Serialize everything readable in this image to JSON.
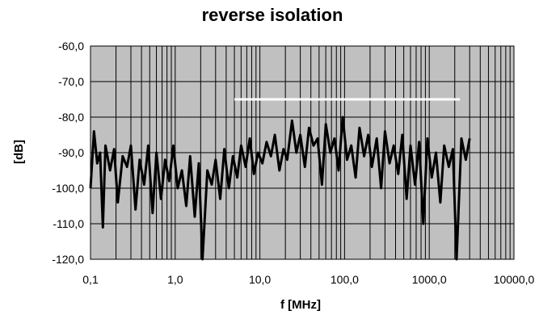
{
  "chart_data": {
    "type": "line",
    "title": "reverse isolation",
    "xlabel": "f [MHz]",
    "ylabel": "[dB]",
    "x_scale": "log",
    "xlim": [
      0.1,
      10000
    ],
    "ylim": [
      -120,
      -60
    ],
    "x_tick_labels": [
      "0,1",
      "1,0",
      "10,0",
      "100,0",
      "1000,0",
      "10000,0"
    ],
    "y_tick_labels": [
      "-60,0",
      "-70,0",
      "-80,0",
      "-90,0",
      "-100,0",
      "-110,0",
      "-120,0"
    ],
    "grid": true,
    "plot_background": "#c0c0c0",
    "series": [
      {
        "color": "#000000",
        "x": [
          0.1,
          0.11,
          0.12,
          0.13,
          0.14,
          0.15,
          0.17,
          0.19,
          0.21,
          0.24,
          0.27,
          0.3,
          0.34,
          0.38,
          0.43,
          0.48,
          0.54,
          0.6,
          0.68,
          0.76,
          0.85,
          0.95,
          1.07,
          1.2,
          1.35,
          1.5,
          1.7,
          1.9,
          2.1,
          2.4,
          2.7,
          3.0,
          3.4,
          3.8,
          4.3,
          4.8,
          5.4,
          6.0,
          6.8,
          7.6,
          8.5,
          9.5,
          10.7,
          12,
          13.5,
          15,
          17,
          19,
          21,
          24,
          27,
          30,
          34,
          38,
          43,
          48,
          54,
          60,
          68,
          76,
          85,
          95,
          107,
          120,
          135,
          150,
          170,
          190,
          210,
          240,
          270,
          300,
          340,
          380,
          430,
          480,
          540,
          600,
          680,
          760,
          850,
          950,
          1070,
          1200,
          1350,
          1500,
          1700,
          1900,
          2100,
          2400,
          2700,
          3000
        ],
        "y": [
          -100,
          -84,
          -93,
          -90,
          -111,
          -88,
          -95,
          -89,
          -104,
          -91,
          -94,
          -88,
          -106,
          -92,
          -99,
          -88,
          -107,
          -90,
          -103,
          -92,
          -98,
          -88,
          -100,
          -95,
          -105,
          -91,
          -108,
          -93,
          -120,
          -95,
          -99,
          -92,
          -103,
          -89,
          -100,
          -91,
          -97,
          -88,
          -94,
          -86,
          -96,
          -90,
          -93,
          -87,
          -91,
          -85,
          -95,
          -89,
          -92,
          -81,
          -90,
          -85,
          -94,
          -83,
          -88,
          -86,
          -99,
          -82,
          -90,
          -86,
          -95,
          -80,
          -92,
          -88,
          -97,
          -83,
          -91,
          -85,
          -94,
          -86,
          -100,
          -84,
          -93,
          -88,
          -96,
          -85,
          -103,
          -88,
          -99,
          -87,
          -110,
          -86,
          -97,
          -90,
          -104,
          -88,
          -94,
          -89,
          -120,
          -86,
          -92,
          -86
        ]
      }
    ],
    "limit_line": {
      "color": "#ffffff",
      "x": [
        5,
        2300
      ],
      "y": [
        -75,
        -75
      ]
    }
  }
}
